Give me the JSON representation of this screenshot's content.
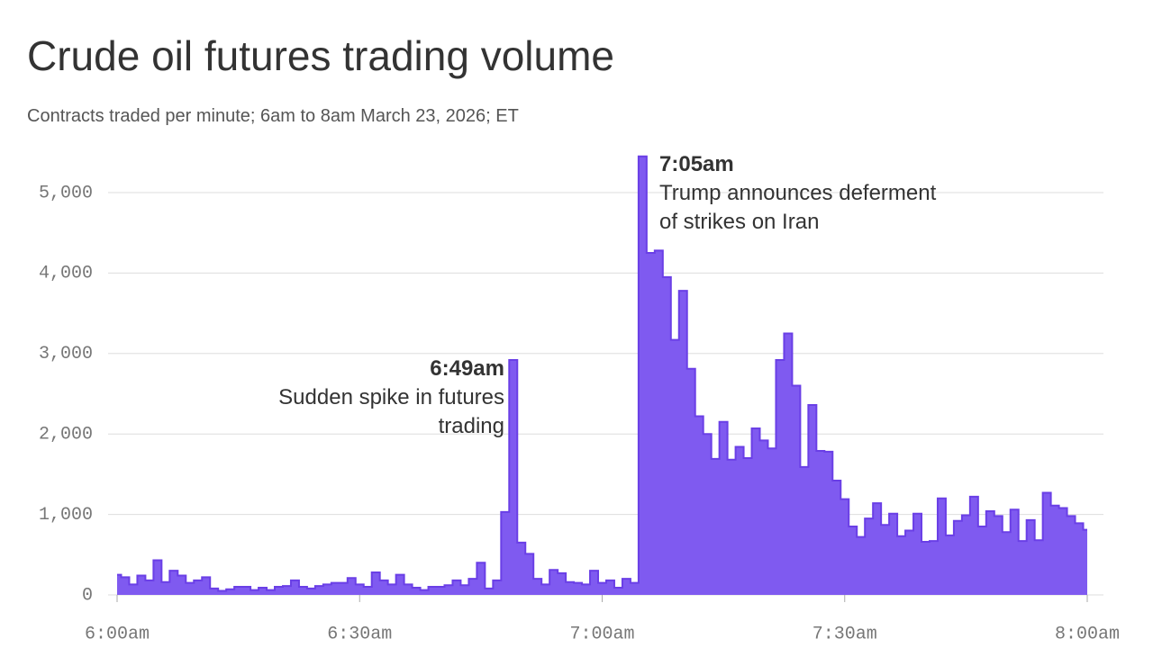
{
  "chart_data": {
    "type": "step-area",
    "title": "Crude oil futures trading volume",
    "subtitle": "Contracts traded per minute; 6am to 8am March 23, 2026; ET",
    "x": [
      0,
      1,
      2,
      3,
      4,
      5,
      6,
      7,
      8,
      9,
      10,
      11,
      12,
      13,
      14,
      15,
      16,
      17,
      18,
      19,
      20,
      21,
      22,
      23,
      24,
      25,
      26,
      27,
      28,
      29,
      30,
      31,
      32,
      33,
      34,
      35,
      36,
      37,
      38,
      39,
      40,
      41,
      42,
      43,
      44,
      45,
      46,
      47,
      48,
      49,
      50,
      51,
      52,
      53,
      54,
      55,
      56,
      57,
      58,
      59,
      60,
      61,
      62,
      63,
      64,
      65,
      66,
      67,
      68,
      69,
      70,
      71,
      72,
      73,
      74,
      75,
      76,
      77,
      78,
      79,
      80,
      81,
      82,
      83,
      84,
      85,
      86,
      87,
      88,
      89,
      90,
      91,
      92,
      93,
      94,
      95,
      96,
      97,
      98,
      99,
      100,
      101,
      102,
      103,
      104,
      105,
      106,
      107,
      108,
      109,
      110,
      111,
      112,
      113,
      114,
      115,
      116,
      117,
      118,
      119,
      120
    ],
    "values": [
      250,
      220,
      130,
      240,
      180,
      430,
      160,
      300,
      240,
      150,
      180,
      220,
      80,
      50,
      70,
      100,
      100,
      60,
      90,
      60,
      100,
      110,
      180,
      100,
      80,
      110,
      130,
      150,
      150,
      210,
      130,
      100,
      280,
      180,
      130,
      250,
      130,
      90,
      60,
      100,
      100,
      120,
      180,
      120,
      200,
      400,
      80,
      180,
      1030,
      2920,
      650,
      510,
      200,
      130,
      310,
      270,
      160,
      150,
      130,
      300,
      150,
      180,
      90,
      200,
      150,
      5450,
      4250,
      4280,
      3950,
      3170,
      3780,
      2810,
      2220,
      2000,
      1690,
      2150,
      1680,
      1840,
      1700,
      2070,
      1920,
      1820,
      2920,
      3250,
      2600,
      1590,
      2360,
      1790,
      1780,
      1420,
      1190,
      850,
      720,
      950,
      1140,
      870,
      1010,
      730,
      800,
      1010,
      660,
      670,
      1200,
      740,
      920,
      990,
      1220,
      850,
      1040,
      980,
      780,
      1060,
      670,
      930,
      680,
      1270,
      1110,
      1080,
      980,
      890,
      810
    ],
    "color": "#7f5af0",
    "line_color": "#6a3fe6",
    "xlim": [
      0,
      120
    ],
    "xticks": [
      {
        "value": 0,
        "label": "6:00am"
      },
      {
        "value": 30,
        "label": "6:30am"
      },
      {
        "value": 60,
        "label": "7:00am"
      },
      {
        "value": 90,
        "label": "7:30am"
      },
      {
        "value": 120,
        "label": "8:00am"
      }
    ],
    "ylim": [
      0,
      5500
    ],
    "yticks": [
      {
        "value": 0,
        "label": "0"
      },
      {
        "value": 1000,
        "label": "1,000"
      },
      {
        "value": 2000,
        "label": "2,000"
      },
      {
        "value": 3000,
        "label": "3,000"
      },
      {
        "value": 4000,
        "label": "4,000"
      },
      {
        "value": 5000,
        "label": "5,000"
      }
    ],
    "grid": true,
    "annotations": [
      {
        "label": "6:49am",
        "text": [
          "Sudden spike in futures",
          "trading"
        ]
      },
      {
        "label": "7:05am",
        "text": [
          "Trump announces deferment",
          "of strikes on Iran"
        ]
      }
    ]
  }
}
